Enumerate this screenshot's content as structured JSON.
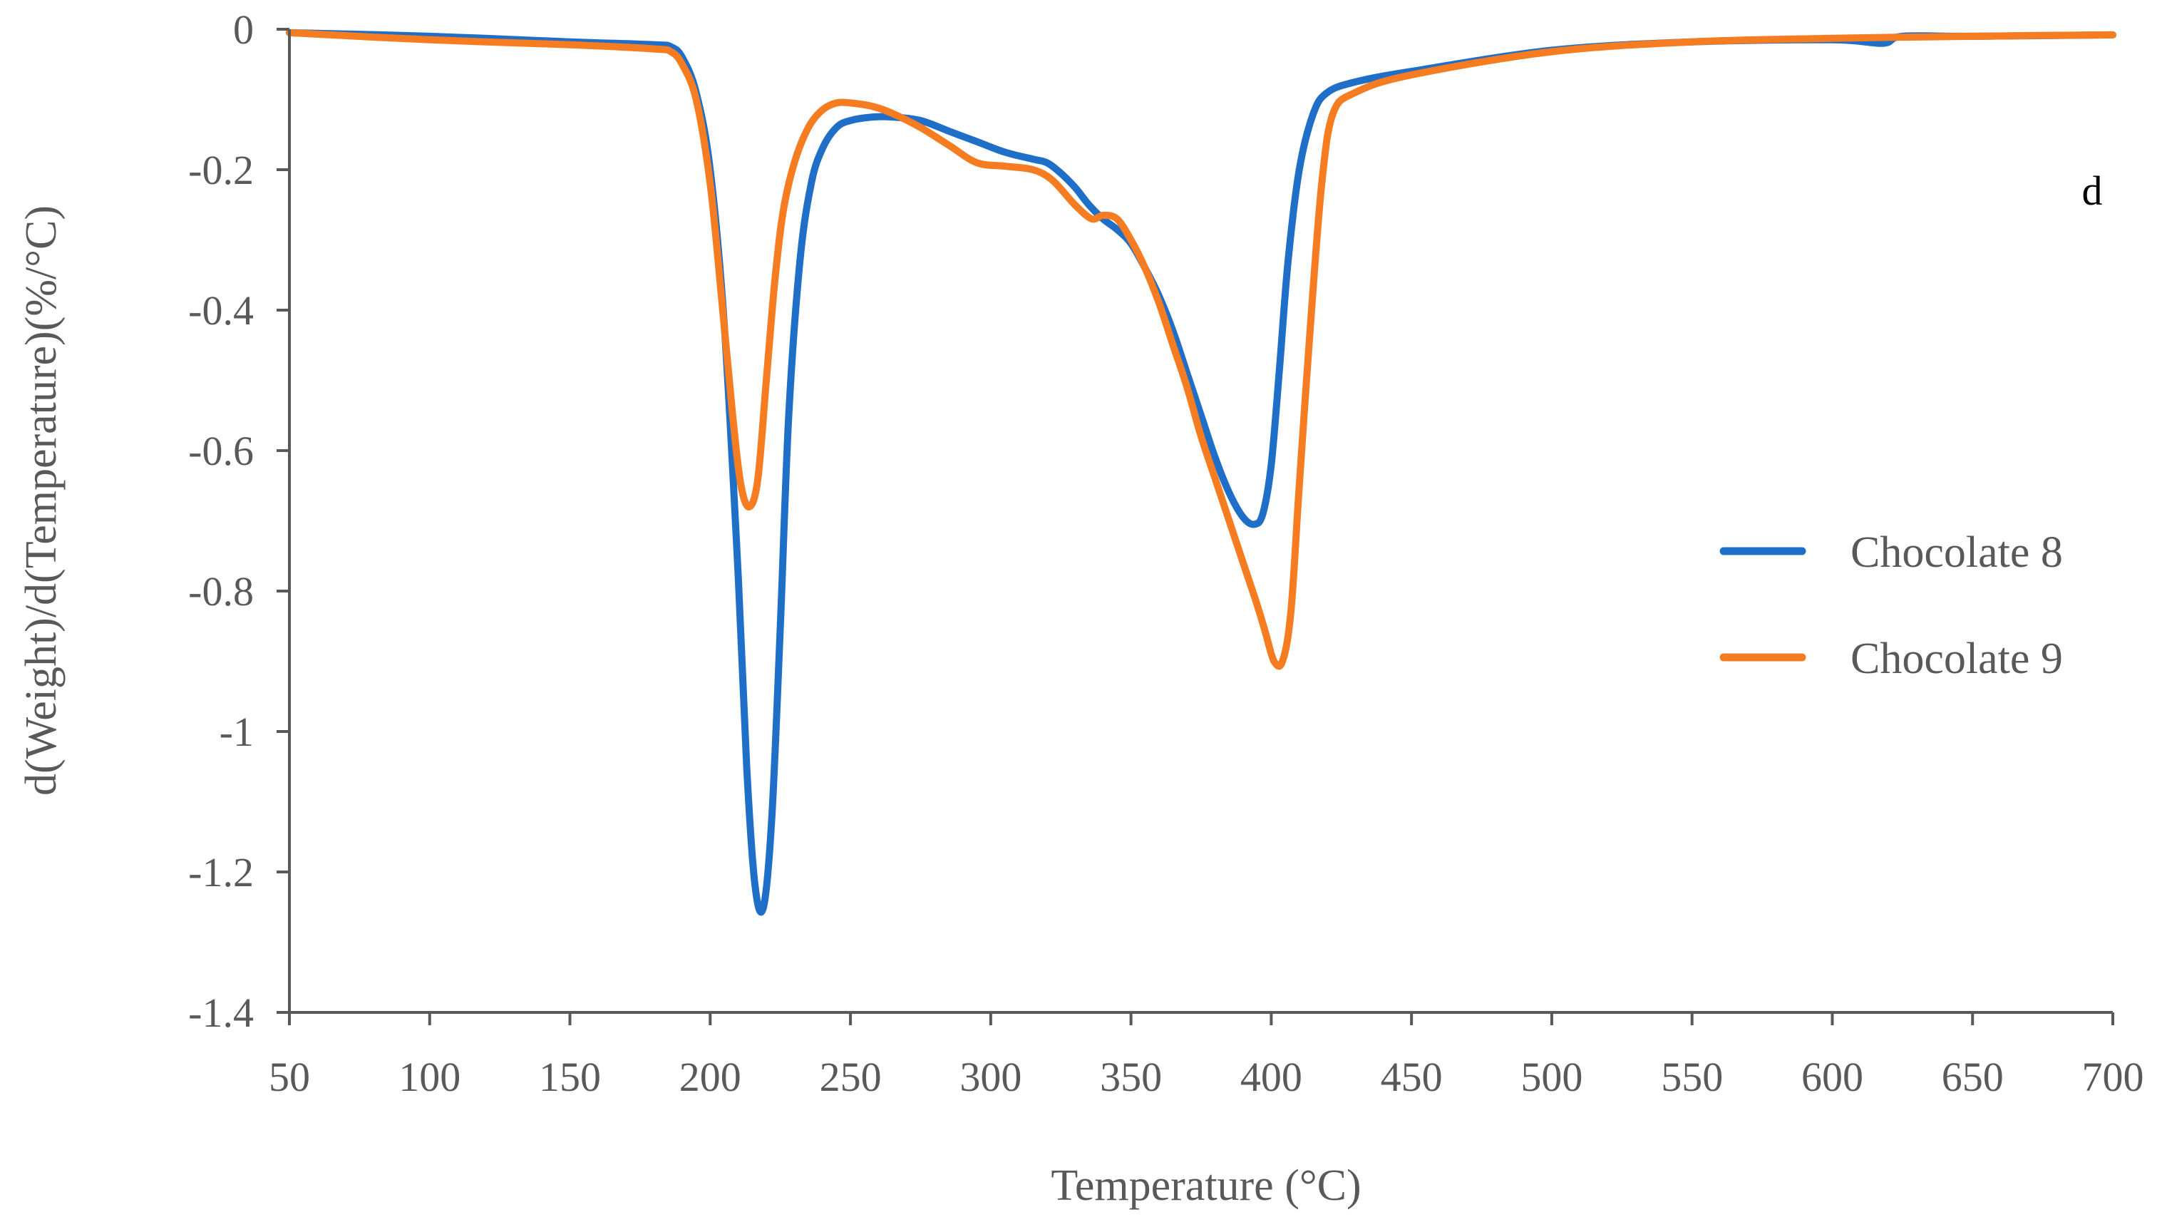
{
  "chart_data": {
    "type": "line",
    "title": "",
    "panel_label": "d",
    "xlabel": "Temperature (°C)",
    "ylabel": "d(Weight)/d(Temperature)(%/°C)",
    "xlim": [
      50,
      700
    ],
    "ylim": [
      -1.4,
      0
    ],
    "x_ticks": [
      50,
      100,
      150,
      200,
      250,
      300,
      350,
      400,
      450,
      500,
      550,
      600,
      650,
      700
    ],
    "x_tick_labels": [
      "50",
      "100",
      "150",
      "200",
      "250",
      "300",
      "350",
      "400",
      "450",
      "500",
      "550",
      "600",
      "650",
      "700"
    ],
    "y_ticks": [
      0,
      -0.2,
      -0.4,
      -0.6,
      -0.8,
      -1,
      -1.2,
      -1.4
    ],
    "y_tick_labels": [
      "0",
      "-0.2",
      "-0.4",
      "-0.6",
      "-0.8",
      "-1",
      "-1.2",
      "-1.4"
    ],
    "grid": false,
    "legend_position": "right",
    "series": [
      {
        "name": "Chocolate 8",
        "color": "#1f6fc9",
        "x": [
          50,
          100,
          150,
          180,
          186,
          190,
          195,
          200,
          205,
          210,
          213,
          216,
          219,
          222,
          225,
          228,
          232,
          236,
          240,
          245,
          250,
          258,
          265,
          275,
          285,
          295,
          305,
          315,
          320,
          325,
          330,
          335,
          340,
          345,
          350,
          355,
          360,
          365,
          370,
          375,
          380,
          385,
          390,
          394,
          397,
          400,
          403,
          406,
          410,
          415,
          420,
          430,
          450,
          500,
          550,
          600,
          618,
          625,
          650,
          700
        ],
        "y": [
          -0.005,
          -0.01,
          -0.018,
          -0.022,
          -0.025,
          -0.04,
          -0.09,
          -0.2,
          -0.42,
          -0.78,
          -1.05,
          -1.22,
          -1.25,
          -1.12,
          -0.85,
          -0.55,
          -0.33,
          -0.22,
          -0.17,
          -0.14,
          -0.13,
          -0.125,
          -0.125,
          -0.13,
          -0.145,
          -0.16,
          -0.175,
          -0.185,
          -0.19,
          -0.205,
          -0.225,
          -0.25,
          -0.27,
          -0.285,
          -0.305,
          -0.34,
          -0.38,
          -0.43,
          -0.49,
          -0.55,
          -0.61,
          -0.66,
          -0.695,
          -0.705,
          -0.69,
          -0.62,
          -0.48,
          -0.33,
          -0.2,
          -0.12,
          -0.09,
          -0.075,
          -0.06,
          -0.03,
          -0.018,
          -0.015,
          -0.02,
          -0.01,
          -0.01,
          -0.008
        ]
      },
      {
        "name": "Chocolate 9",
        "color": "#f57c20",
        "x": [
          50,
          100,
          150,
          180,
          186,
          190,
          195,
          200,
          204,
          208,
          211,
          214,
          217,
          220,
          223,
          226,
          230,
          235,
          240,
          245,
          250,
          258,
          265,
          275,
          285,
          295,
          305,
          315,
          322,
          330,
          336,
          340,
          345,
          350,
          355,
          360,
          365,
          370,
          375,
          380,
          385,
          390,
          395,
          398,
          401,
          404,
          407,
          410,
          414,
          418,
          422,
          430,
          450,
          500,
          550,
          600,
          650,
          700
        ],
        "y": [
          -0.005,
          -0.015,
          -0.022,
          -0.028,
          -0.032,
          -0.05,
          -0.1,
          -0.22,
          -0.38,
          -0.55,
          -0.65,
          -0.68,
          -0.64,
          -0.5,
          -0.36,
          -0.26,
          -0.19,
          -0.14,
          -0.115,
          -0.105,
          -0.105,
          -0.11,
          -0.12,
          -0.14,
          -0.165,
          -0.19,
          -0.195,
          -0.2,
          -0.215,
          -0.25,
          -0.27,
          -0.265,
          -0.27,
          -0.3,
          -0.34,
          -0.39,
          -0.45,
          -0.51,
          -0.58,
          -0.64,
          -0.7,
          -0.76,
          -0.82,
          -0.86,
          -0.9,
          -0.9,
          -0.83,
          -0.65,
          -0.42,
          -0.22,
          -0.12,
          -0.09,
          -0.065,
          -0.032,
          -0.018,
          -0.013,
          -0.01,
          -0.008
        ]
      }
    ]
  }
}
